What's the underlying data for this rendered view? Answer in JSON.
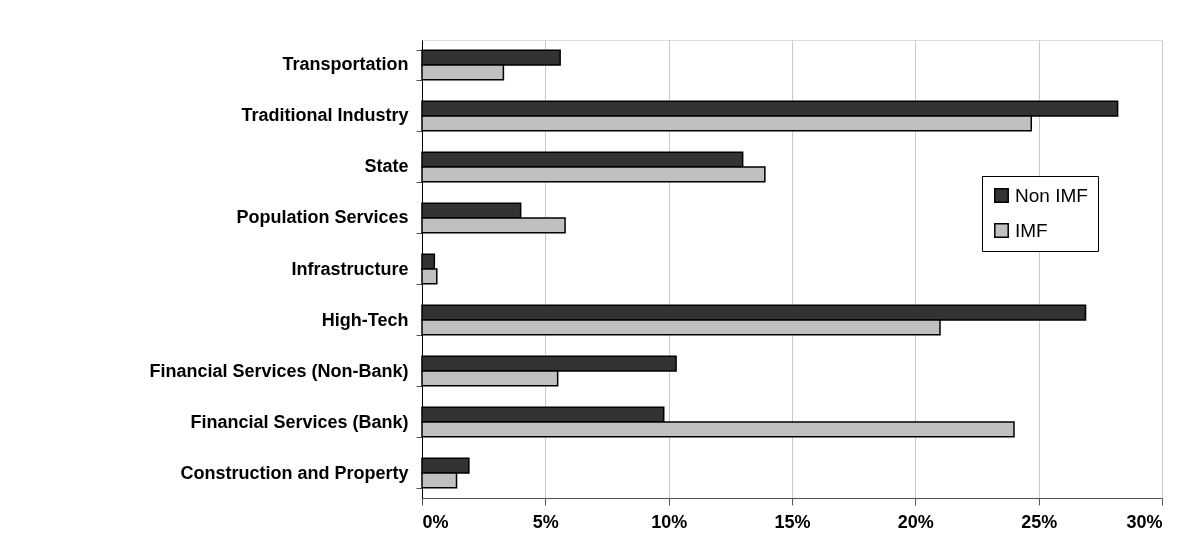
{
  "chart_data": {
    "type": "bar",
    "orientation": "horizontal",
    "categories": [
      "Transportation",
      "Traditional Industry",
      "State",
      "Population Services",
      "Infrastructure",
      "High-Tech",
      "Financial Services (Non-Bank)",
      "Financial Services (Bank)",
      "Construction and Property"
    ],
    "series": [
      {
        "name": "Non IMF",
        "color": "#333333",
        "values": [
          5.6,
          28.2,
          13.0,
          4.0,
          0.5,
          26.9,
          10.3,
          9.8,
          1.9
        ]
      },
      {
        "name": "IMF",
        "color": "#c0c0c0",
        "values": [
          3.3,
          24.7,
          13.9,
          5.8,
          0.6,
          21.0,
          5.5,
          24.0,
          1.4
        ]
      }
    ],
    "xlim": [
      0,
      30
    ],
    "xticks": [
      {
        "value": 0,
        "label": "0%"
      },
      {
        "value": 5,
        "label": "5%"
      },
      {
        "value": 10,
        "label": "10%"
      },
      {
        "value": 15,
        "label": "15%"
      },
      {
        "value": 20,
        "label": "20%"
      },
      {
        "value": 25,
        "label": "25%"
      },
      {
        "value": 30,
        "label": "30%"
      }
    ],
    "grid": "x",
    "legend": "right"
  }
}
